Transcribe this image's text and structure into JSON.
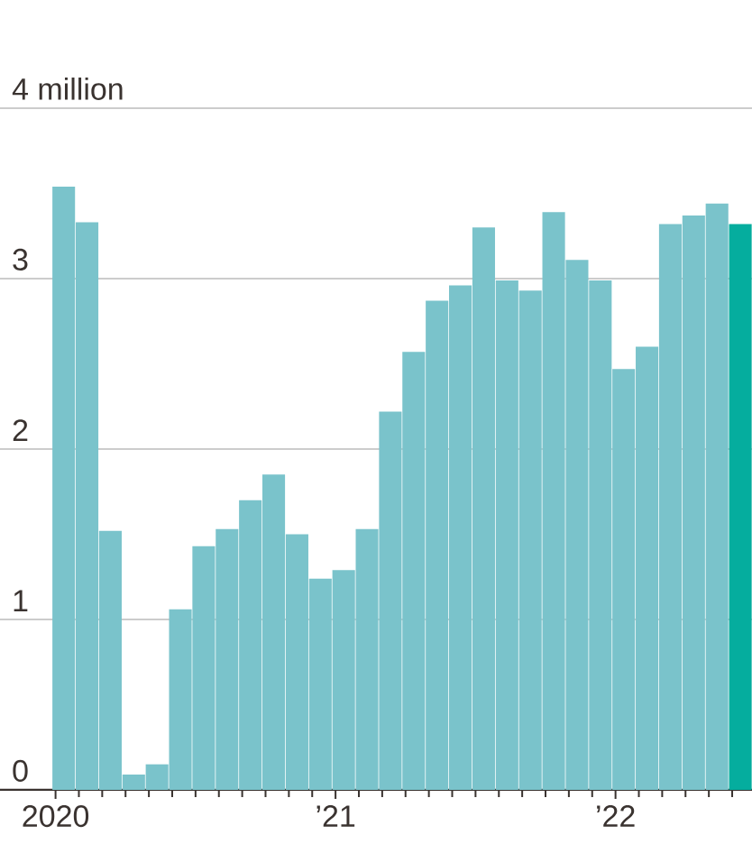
{
  "chart_data": {
    "type": "bar",
    "categories": [
      "2020",
      null,
      null,
      null,
      null,
      null,
      null,
      null,
      null,
      null,
      null,
      null,
      "’21",
      null,
      null,
      null,
      null,
      null,
      null,
      null,
      null,
      null,
      null,
      null,
      "’22",
      null,
      null,
      null,
      null,
      null
    ],
    "values": [
      3.54,
      3.33,
      1.52,
      0.09,
      0.15,
      1.06,
      1.43,
      1.53,
      1.7,
      1.85,
      1.5,
      1.24,
      1.29,
      1.53,
      2.22,
      2.57,
      2.87,
      2.96,
      3.3,
      2.99,
      2.93,
      3.39,
      3.11,
      2.99,
      2.47,
      2.6,
      3.32,
      3.37,
      3.44,
      3.32
    ],
    "colors": [
      "#7ac3cb",
      "#7ac3cb",
      "#7ac3cb",
      "#7ac3cb",
      "#7ac3cb",
      "#7ac3cb",
      "#7ac3cb",
      "#7ac3cb",
      "#7ac3cb",
      "#7ac3cb",
      "#7ac3cb",
      "#7ac3cb",
      "#7ac3cb",
      "#7ac3cb",
      "#7ac3cb",
      "#7ac3cb",
      "#7ac3cb",
      "#7ac3cb",
      "#7ac3cb",
      "#7ac3cb",
      "#7ac3cb",
      "#7ac3cb",
      "#7ac3cb",
      "#7ac3cb",
      "#7ac3cb",
      "#7ac3cb",
      "#7ac3cb",
      "#7ac3cb",
      "#7ac3cb",
      "#05ad9e"
    ],
    "ylim": [
      0,
      4
    ],
    "yticks": [
      0,
      1,
      2,
      3,
      {
        "value": 4,
        "label": "4 million"
      }
    ],
    "grid": "y"
  }
}
